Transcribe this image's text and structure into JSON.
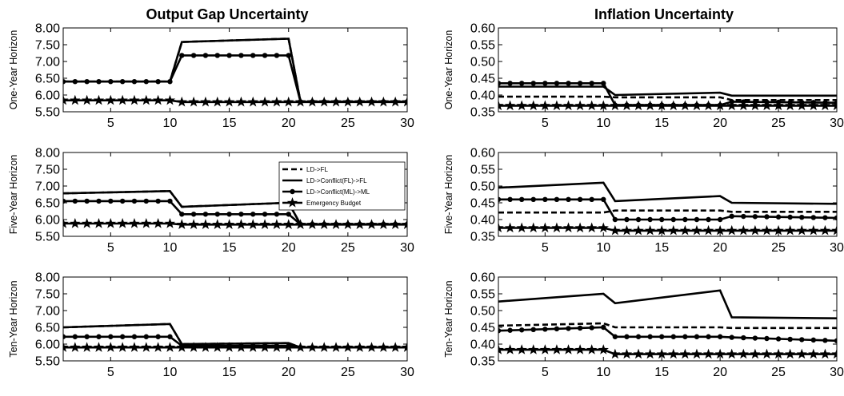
{
  "column_titles": [
    "Output Gap Uncertainty",
    "Inflation Uncertainty"
  ],
  "legend": {
    "placement": "inside upper-right of the middle-left panel",
    "entries": [
      "LD->FL",
      "LD->Conflict(FL)->FL",
      "LD->Conflict(ML)->ML",
      "Emergency Budget"
    ]
  },
  "chart_data": [
    {
      "type": "line",
      "column_title": "Output Gap Uncertainty",
      "ylabel": "One-Year Horizon",
      "xlim": [
        1,
        30
      ],
      "xticks": [
        5,
        10,
        15,
        20,
        25,
        30
      ],
      "ylim": [
        5.5,
        8.0
      ],
      "yticks": [
        "5.50",
        "6.00",
        "6.50",
        "7.00",
        "7.50",
        "8.00"
      ],
      "series": [
        {
          "name": "LD->FL",
          "x": [
            1,
            10,
            11,
            20,
            21,
            30
          ],
          "y": [
            6.4,
            6.4,
            7.58,
            7.68,
            5.8,
            5.8
          ]
        },
        {
          "name": "LD->Conflict(FL)->FL",
          "x": [
            1,
            10,
            11,
            20,
            21,
            30
          ],
          "y": [
            6.4,
            6.4,
            7.58,
            7.68,
            5.8,
            5.8
          ]
        },
        {
          "name": "LD->Conflict(ML)->ML",
          "x": [
            1,
            10,
            11,
            20,
            21,
            30
          ],
          "y": [
            6.4,
            6.4,
            7.18,
            7.18,
            5.8,
            5.8
          ]
        },
        {
          "name": "Emergency Budget",
          "x": [
            1,
            10,
            11,
            20,
            21,
            30
          ],
          "y": [
            5.84,
            5.84,
            5.79,
            5.79,
            5.79,
            5.79
          ]
        }
      ]
    },
    {
      "type": "line",
      "column_title": "Inflation Uncertainty",
      "ylabel": "One-Year Horizon",
      "xlim": [
        1,
        30
      ],
      "xticks": [
        5,
        10,
        15,
        20,
        25,
        30
      ],
      "ylim": [
        0.35,
        0.6
      ],
      "yticks": [
        "0.35",
        "0.40",
        "0.45",
        "0.50",
        "0.55",
        "0.60"
      ],
      "series": [
        {
          "name": "LD->FL",
          "x": [
            1,
            10,
            11,
            20,
            21,
            30
          ],
          "y": [
            0.395,
            0.395,
            0.393,
            0.393,
            0.385,
            0.385
          ]
        },
        {
          "name": "LD->Conflict(FL)->FL",
          "x": [
            1,
            10,
            11,
            20,
            21,
            30
          ],
          "y": [
            0.425,
            0.425,
            0.4,
            0.407,
            0.398,
            0.398
          ]
        },
        {
          "name": "LD->Conflict(ML)->ML",
          "x": [
            1,
            10,
            11,
            20,
            21,
            30
          ],
          "y": [
            0.435,
            0.435,
            0.37,
            0.37,
            0.38,
            0.377
          ]
        },
        {
          "name": "Emergency Budget",
          "x": [
            1,
            10,
            11,
            20,
            21,
            30
          ],
          "y": [
            0.368,
            0.368,
            0.368,
            0.368,
            0.368,
            0.368
          ]
        }
      ]
    },
    {
      "type": "line",
      "column_title": "Output Gap Uncertainty",
      "ylabel": "Five-Year Horizon",
      "xlim": [
        1,
        30
      ],
      "xticks": [
        5,
        10,
        15,
        20,
        25,
        30
      ],
      "ylim": [
        5.5,
        8.0
      ],
      "yticks": [
        "5.50",
        "6.00",
        "6.50",
        "7.00",
        "7.50",
        "8.00"
      ],
      "series": [
        {
          "name": "LD->FL",
          "x": [
            1,
            10,
            11,
            20,
            21,
            30
          ],
          "y": [
            6.78,
            6.85,
            6.38,
            6.5,
            5.86,
            5.86
          ]
        },
        {
          "name": "LD->Conflict(FL)->FL",
          "x": [
            1,
            10,
            11,
            20,
            21,
            30
          ],
          "y": [
            6.78,
            6.85,
            6.38,
            6.5,
            5.86,
            5.86
          ]
        },
        {
          "name": "LD->Conflict(ML)->ML",
          "x": [
            1,
            10,
            11,
            20,
            21,
            30
          ],
          "y": [
            6.55,
            6.55,
            6.16,
            6.16,
            5.86,
            5.86
          ]
        },
        {
          "name": "Emergency Budget",
          "x": [
            1,
            10,
            11,
            20,
            21,
            30
          ],
          "y": [
            5.88,
            5.88,
            5.85,
            5.85,
            5.85,
            5.85
          ]
        }
      ]
    },
    {
      "type": "line",
      "column_title": "Inflation Uncertainty",
      "ylabel": "Five-Year Horizon",
      "xlim": [
        1,
        30
      ],
      "xticks": [
        5,
        10,
        15,
        20,
        25,
        30
      ],
      "ylim": [
        0.35,
        0.6
      ],
      "yticks": [
        "0.35",
        "0.40",
        "0.45",
        "0.50",
        "0.55",
        "0.60"
      ],
      "series": [
        {
          "name": "LD->FL",
          "x": [
            1,
            10,
            11,
            20,
            21,
            30
          ],
          "y": [
            0.421,
            0.421,
            0.427,
            0.427,
            0.423,
            0.423
          ]
        },
        {
          "name": "LD->Conflict(FL)->FL",
          "x": [
            1,
            10,
            11,
            20,
            21,
            30
          ],
          "y": [
            0.495,
            0.51,
            0.455,
            0.47,
            0.45,
            0.447
          ]
        },
        {
          "name": "LD->Conflict(ML)->ML",
          "x": [
            1,
            10,
            11,
            20,
            21,
            30
          ],
          "y": [
            0.46,
            0.46,
            0.4,
            0.4,
            0.41,
            0.405
          ]
        },
        {
          "name": "Emergency Budget",
          "x": [
            1,
            10,
            11,
            20,
            21,
            30
          ],
          "y": [
            0.375,
            0.375,
            0.367,
            0.367,
            0.367,
            0.367
          ]
        }
      ]
    },
    {
      "type": "line",
      "column_title": "Output Gap Uncertainty",
      "ylabel": "Ten-Year Horizon",
      "xlim": [
        1,
        30
      ],
      "xticks": [
        5,
        10,
        15,
        20,
        25,
        30
      ],
      "ylim": [
        5.5,
        8.0
      ],
      "yticks": [
        "5.50",
        "6.00",
        "6.50",
        "7.00",
        "7.50",
        "8.00"
      ],
      "series": [
        {
          "name": "LD->FL",
          "x": [
            1,
            10,
            11,
            20,
            21,
            30
          ],
          "y": [
            6.5,
            6.6,
            6.0,
            6.03,
            5.9,
            5.9
          ]
        },
        {
          "name": "LD->Conflict(FL)->FL",
          "x": [
            1,
            10,
            11,
            20,
            21,
            30
          ],
          "y": [
            6.5,
            6.6,
            6.0,
            6.03,
            5.9,
            5.9
          ]
        },
        {
          "name": "LD->Conflict(ML)->ML",
          "x": [
            1,
            10,
            11,
            20,
            21,
            30
          ],
          "y": [
            6.22,
            6.22,
            5.95,
            5.95,
            5.9,
            5.9
          ]
        },
        {
          "name": "Emergency Budget",
          "x": [
            1,
            10,
            11,
            20,
            21,
            30
          ],
          "y": [
            5.9,
            5.9,
            5.9,
            5.9,
            5.9,
            5.9
          ]
        }
      ]
    },
    {
      "type": "line",
      "column_title": "Inflation Uncertainty",
      "ylabel": "Ten-Year Horizon",
      "xlim": [
        1,
        30
      ],
      "xticks": [
        5,
        10,
        15,
        20,
        25,
        30
      ],
      "ylim": [
        0.35,
        0.6
      ],
      "yticks": [
        "0.35",
        "0.40",
        "0.45",
        "0.50",
        "0.55",
        "0.60"
      ],
      "series": [
        {
          "name": "LD->FL",
          "x": [
            1,
            10,
            11,
            20,
            21,
            30
          ],
          "y": [
            0.455,
            0.462,
            0.45,
            0.45,
            0.448,
            0.448
          ]
        },
        {
          "name": "LD->Conflict(FL)->FL",
          "x": [
            1,
            10,
            11,
            20,
            21,
            30
          ],
          "y": [
            0.527,
            0.55,
            0.522,
            0.56,
            0.48,
            0.477
          ]
        },
        {
          "name": "LD->Conflict(ML)->ML",
          "x": [
            1,
            10,
            11,
            20,
            21,
            30
          ],
          "y": [
            0.44,
            0.45,
            0.422,
            0.422,
            0.42,
            0.41
          ]
        },
        {
          "name": "Emergency Budget",
          "x": [
            1,
            10,
            11,
            20,
            21,
            30
          ],
          "y": [
            0.383,
            0.383,
            0.37,
            0.37,
            0.37,
            0.37
          ]
        }
      ]
    }
  ]
}
